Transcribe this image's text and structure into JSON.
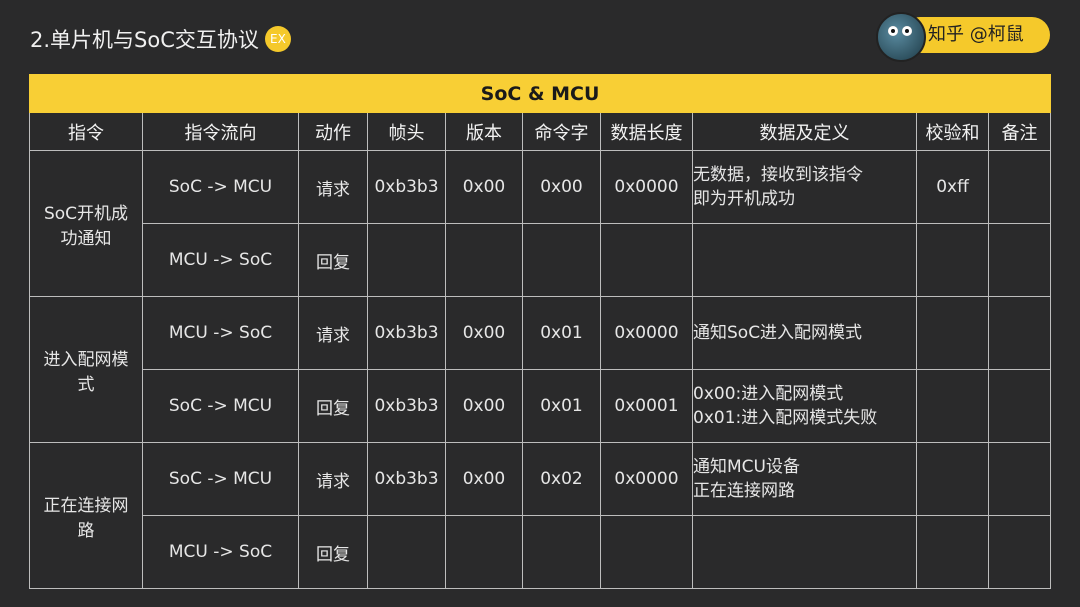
{
  "title": "2.单片机与SoC交互协议",
  "title_badge": "EX",
  "brand": {
    "label": "知乎 @柯鼠"
  },
  "table": {
    "caption": "SoC & MCU",
    "headers": [
      "指令",
      "指令流向",
      "动作",
      "帧头",
      "版本",
      "命令字",
      "数据长度",
      "数据及定义",
      "校验和",
      "备注"
    ],
    "groups": [
      {
        "command": "SoC开机成功通知",
        "rows": [
          {
            "direction": "SoC -> MCU",
            "action": "请求",
            "header": "0xb3b3",
            "version": "0x00",
            "cmd": "0x00",
            "length": "0x0000",
            "definition": [
              "无数据，接收到该指令",
              "即为开机成功"
            ],
            "checksum": "0xff",
            "note": ""
          },
          {
            "direction": "MCU -> SoC",
            "action": "回复",
            "header": "",
            "version": "",
            "cmd": "",
            "length": "",
            "definition": [],
            "checksum": "",
            "note": ""
          }
        ]
      },
      {
        "command": "进入配网模式",
        "rows": [
          {
            "direction": "MCU -> SoC",
            "action": "请求",
            "header": "0xb3b3",
            "version": "0x00",
            "cmd": "0x01",
            "length": "0x0000",
            "definition": [
              "通知SoC进入配网模式"
            ],
            "checksum": "",
            "note": ""
          },
          {
            "direction": "SoC -> MCU",
            "action": "回复",
            "header": "0xb3b3",
            "version": "0x00",
            "cmd": "0x01",
            "length": "0x0001",
            "definition": [
              "0x00:进入配网模式",
              "0x01:进入配网模式失败"
            ],
            "checksum": "",
            "note": ""
          }
        ]
      },
      {
        "command": "正在连接网路",
        "rows": [
          {
            "direction": "SoC -> MCU",
            "action": "请求",
            "header": "0xb3b3",
            "version": "0x00",
            "cmd": "0x02",
            "length": "0x0000",
            "definition": [
              "通知MCU设备",
              "正在连接网路"
            ],
            "checksum": "",
            "note": ""
          },
          {
            "direction": "MCU -> SoC",
            "action": "回复",
            "header": "",
            "version": "",
            "cmd": "",
            "length": "",
            "definition": [],
            "checksum": "",
            "note": ""
          }
        ]
      }
    ]
  },
  "colors": {
    "accent": "#f8cf35",
    "background": "#2a2a2b"
  }
}
